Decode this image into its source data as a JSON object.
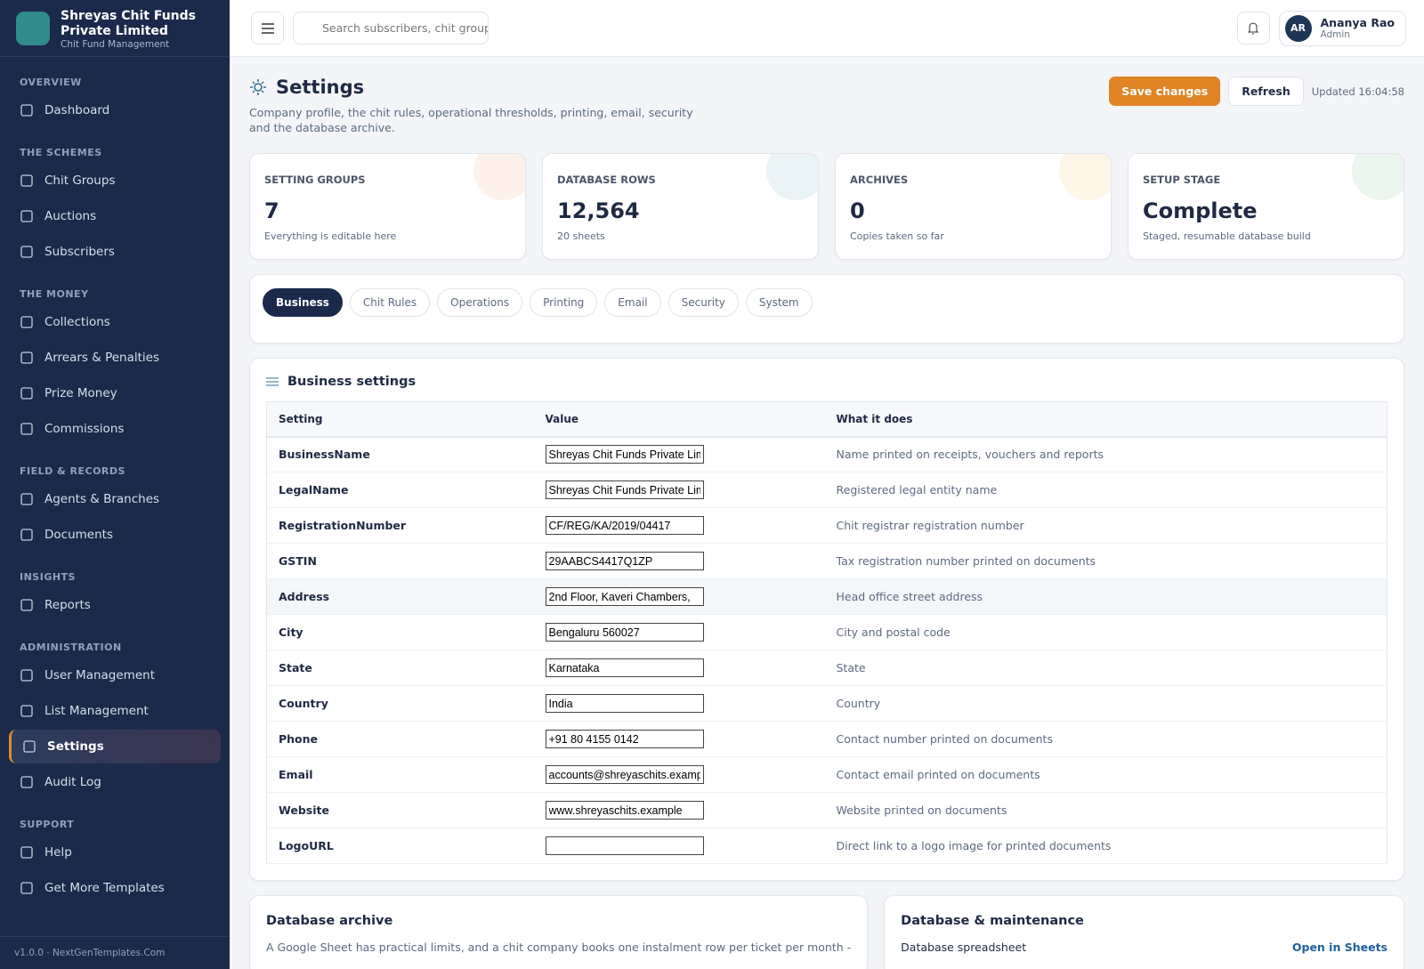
{
  "brand": {
    "name": "Shreyas Chit Funds Private Limited",
    "tagline": "Chit Fund Management"
  },
  "nav": [
    {
      "title": "OVERVIEW",
      "items": [
        "Dashboard"
      ]
    },
    {
      "title": "THE SCHEMES",
      "items": [
        "Chit Groups",
        "Auctions",
        "Subscribers"
      ]
    },
    {
      "title": "THE MONEY",
      "items": [
        "Collections",
        "Arrears & Penalties",
        "Prize Money",
        "Commissions"
      ]
    },
    {
      "title": "FIELD & RECORDS",
      "items": [
        "Agents & Branches",
        "Documents"
      ]
    },
    {
      "title": "INSIGHTS",
      "items": [
        "Reports"
      ]
    },
    {
      "title": "ADMINISTRATION",
      "items": [
        "User Management",
        "List Management",
        "Settings",
        "Audit Log"
      ]
    },
    {
      "title": "SUPPORT",
      "items": [
        "Help",
        "Get More Templates"
      ]
    }
  ],
  "version": "v1.0.0 · NextGenTemplates.Com",
  "topbar": {
    "search_placeholder": "Search subscribers, chit groups",
    "user": {
      "initials": "AR",
      "name": "Ananya Rao",
      "role": "Admin"
    }
  },
  "header": {
    "title": "Settings",
    "description": "Company profile, the chit rules, operational thresholds, printing, email, security and the database archive.",
    "save": "Save changes",
    "refresh": "Refresh",
    "updated": "Updated 16:04:58"
  },
  "stats": [
    {
      "label": "SETTING GROUPS",
      "value": "7",
      "note": "Everything is editable here"
    },
    {
      "label": "DATABASE ROWS",
      "value": "12,564",
      "note": "20 sheets"
    },
    {
      "label": "ARCHIVES",
      "value": "0",
      "note": "Copies taken so far"
    },
    {
      "label": "SETUP STAGE",
      "value": "Complete",
      "note": "Staged, resumable database build"
    }
  ],
  "tabs": [
    "Business",
    "Chit Rules",
    "Operations",
    "Printing",
    "Email",
    "Security",
    "System"
  ],
  "business": {
    "title": "Business settings",
    "columns": [
      "Setting",
      "Value",
      "What it does"
    ],
    "rows": [
      [
        "BusinessName",
        "Shreyas Chit Funds Private Limited",
        "Name printed on receipts, vouchers and reports"
      ],
      [
        "LegalName",
        "Shreyas Chit Funds Private Limited",
        "Registered legal entity name"
      ],
      [
        "RegistrationNumber",
        "CF/REG/KA/2019/04417",
        "Chit registrar registration number"
      ],
      [
        "GSTIN",
        "29AABCS4417Q1ZP",
        "Tax registration number printed on documents"
      ],
      [
        "Address",
        "2nd Floor, Kaveri Chambers,",
        "Head office street address"
      ],
      [
        "City",
        "Bengaluru 560027",
        "City and postal code"
      ],
      [
        "State",
        "Karnataka",
        "State"
      ],
      [
        "Country",
        "India",
        "Country"
      ],
      [
        "Phone",
        "+91 80 4155 0142",
        "Contact number printed on documents"
      ],
      [
        "Email",
        "accounts@shreyaschits.example",
        "Contact email printed on documents"
      ],
      [
        "Website",
        "www.shreyaschits.example",
        "Website printed on documents"
      ],
      [
        "LogoURL",
        "",
        "Direct link to a logo image for printed documents"
      ]
    ]
  },
  "archive": {
    "title": "Database archive",
    "text": "A Google Sheet has practical limits, and a chit company books one instalment row per ticket per month -"
  },
  "maintenance": {
    "title": "Database & maintenance",
    "row_label": "Database spreadsheet",
    "link": "Open in Sheets"
  }
}
